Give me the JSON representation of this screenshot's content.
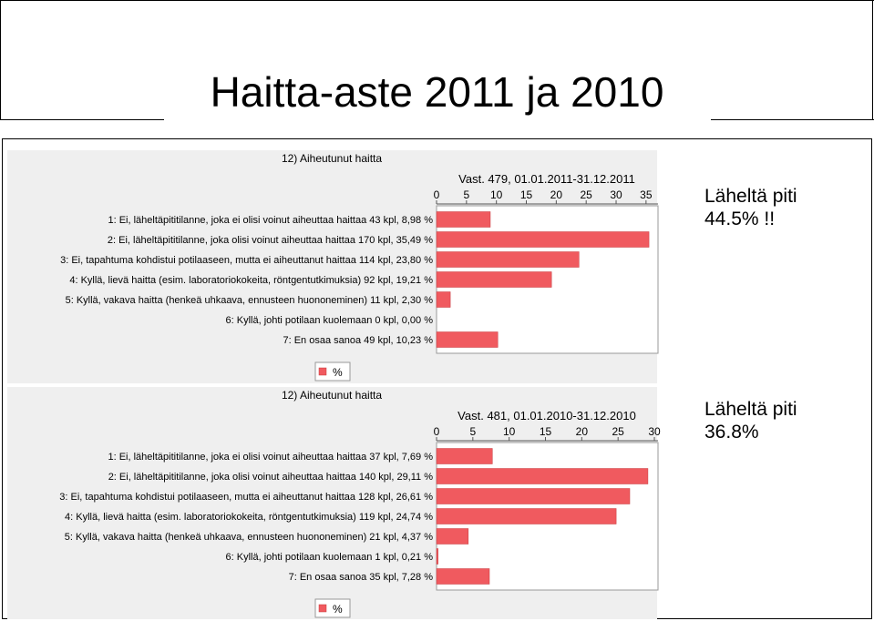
{
  "slide": {
    "title": "Haitta-aste 2011 ja 2010",
    "note_2011_line1": "Läheltä piti",
    "note_2011_line2": "44.5% !!",
    "note_2010_line1": "Läheltä  piti",
    "note_2010_line2": "36.8%"
  },
  "chart_data": [
    {
      "type": "bar",
      "orientation": "horizontal",
      "title": "12) Aiheutunut haitta",
      "subtitle": "Vast. 479, 01.01.2011-31.12.2011",
      "xlim": [
        0,
        37
      ],
      "xticks": [
        0,
        5,
        10,
        15,
        20,
        25,
        30,
        35
      ],
      "categories": [
        "1: Ei, läheltäpititilanne, joka ei olisi voinut aiheuttaa haittaa 43 kpl, 8,98 %",
        "2: Ei, läheltäpititilanne, joka olisi voinut aiheuttaa haittaa 170 kpl, 35,49 %",
        "3: Ei, tapahtuma kohdistui potilaaseen, mutta ei aiheuttanut haittaa 114 kpl, 23,80 %",
        "4: Kyllä, lievä haitta (esim. laboratoriokokeita, röntgentutkimuksia) 92 kpl, 19,21 %",
        "5: Kyllä, vakava haitta (henkeä uhkaava, ennusteen huononeminen) 11 kpl, 2,30 %",
        "6: Kyllä, johti potilaan kuolemaan 0 kpl, 0,00 %",
        "7: En osaa sanoa 49 kpl, 10,23 %"
      ],
      "series": [
        {
          "name": "%",
          "values": [
            8.98,
            35.49,
            23.8,
            19.21,
            2.3,
            0.0,
            10.23
          ]
        }
      ],
      "legend": "bottom",
      "bar_color": "#f05a5f",
      "grid": false
    },
    {
      "type": "bar",
      "orientation": "horizontal",
      "title": "12) Aiheutunut haitta",
      "subtitle": "Vast. 481, 01.01.2010-31.12.2010",
      "xlim": [
        0,
        30.5
      ],
      "xticks": [
        0,
        5,
        10,
        15,
        20,
        25,
        30
      ],
      "categories": [
        "1: Ei, läheltäpititilanne, joka ei olisi voinut aiheuttaa haittaa 37 kpl, 7,69 %",
        "2: Ei, läheltäpititilanne, joka olisi voinut aiheuttaa haittaa 140 kpl, 29,11 %",
        "3: Ei, tapahtuma kohdistui potilaaseen, mutta ei aiheuttanut haittaa 128 kpl, 26,61 %",
        "4: Kyllä, lievä haitta (esim. laboratoriokokeita, röntgentutkimuksia) 119 kpl, 24,74 %",
        "5: Kyllä, vakava haitta (henkeä uhkaava, ennusteen huononeminen) 21 kpl, 4,37 %",
        "6: Kyllä, johti potilaan kuolemaan 1 kpl, 0,21 %",
        "7: En osaa sanoa 35 kpl, 7,28 %"
      ],
      "series": [
        {
          "name": "%",
          "values": [
            7.69,
            29.11,
            26.61,
            24.74,
            4.37,
            0.21,
            7.28
          ]
        }
      ],
      "legend": "bottom",
      "bar_color": "#f05a5f",
      "grid": false
    }
  ]
}
